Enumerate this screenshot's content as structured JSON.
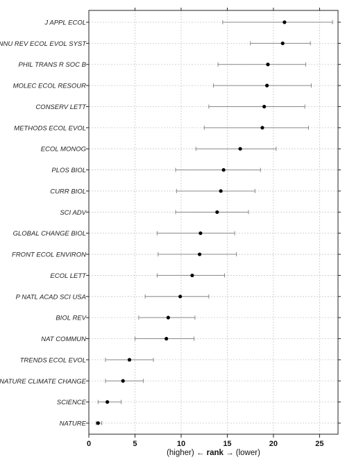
{
  "chart_data": {
    "type": "scatter",
    "variant": "dot-with-error-bars",
    "orientation": "horizontal",
    "xlabel": {
      "left": "(higher) ← ",
      "bold": "rank",
      "right": " → (lower)"
    },
    "xlim": [
      0,
      27
    ],
    "xticks": [
      0,
      5,
      10,
      15,
      20,
      25
    ],
    "grid": true,
    "point_color": "#000000",
    "bar_color": "#888888",
    "categories": [
      "J APPL ECOL",
      "ANNU REV ECOL EVOL SYST",
      "PHIL TRANS R SOC B",
      "MOLEC ECOL RESOUR",
      "CONSERV LETT",
      "METHODS ECOL EVOL",
      "ECOL MONOG",
      "PLOS BIOL",
      "CURR BIOL",
      "SCI ADV",
      "GLOBAL CHANGE BIOL",
      "FRONT ECOL ENVIRON",
      "ECOL LETT",
      "P NATL ACAD SCI USA",
      "BIOL REV",
      "NAT COMMUN",
      "TRENDS ECOL EVOL",
      "NATURE CLIMATE CHANGE",
      "SCIENCE",
      "NATURE"
    ],
    "values": [
      21.2,
      21.0,
      19.4,
      19.3,
      19.0,
      18.8,
      16.4,
      14.6,
      14.3,
      13.9,
      12.1,
      12.0,
      11.2,
      9.9,
      8.6,
      8.4,
      4.4,
      3.7,
      2.0,
      1.0
    ],
    "lower": [
      14.5,
      17.5,
      14.0,
      13.5,
      13.0,
      12.5,
      11.6,
      9.4,
      9.5,
      9.4,
      7.4,
      7.5,
      7.4,
      6.1,
      5.4,
      5.0,
      1.8,
      1.8,
      1.0,
      0.8
    ],
    "upper": [
      26.4,
      24.0,
      23.5,
      24.1,
      23.4,
      23.8,
      20.3,
      18.6,
      18.0,
      17.3,
      15.8,
      16.0,
      14.7,
      13.0,
      11.5,
      11.4,
      7.0,
      5.9,
      3.5,
      1.4
    ]
  }
}
